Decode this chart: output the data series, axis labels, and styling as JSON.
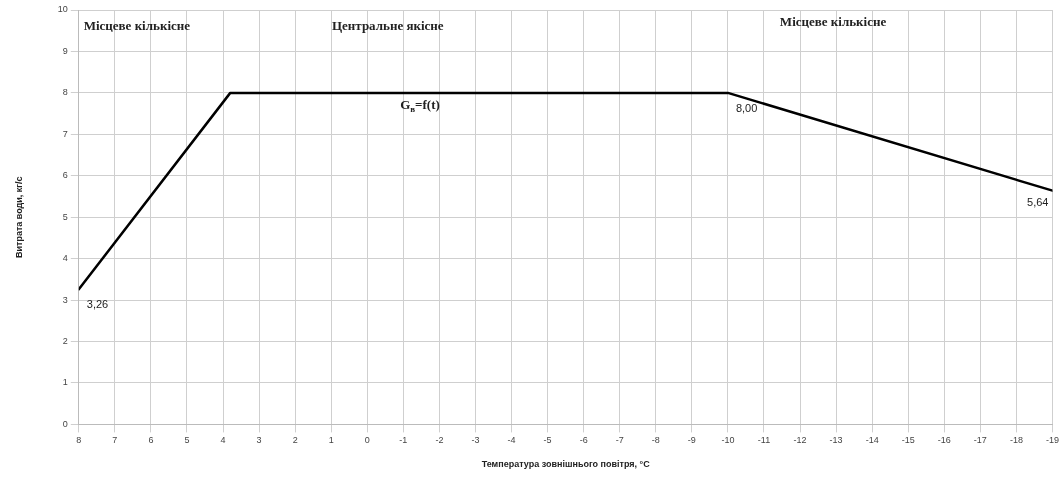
{
  "chart_data": {
    "type": "line",
    "xlabel": "Температура зовнішнього повітря, °С",
    "ylabel": "Витрата води, кг/с",
    "x": [
      8,
      3.8,
      -10,
      -19
    ],
    "series": [
      {
        "color": "#000000",
        "values": [
          3.26,
          8,
          8,
          5.64
        ],
        "value_labels": [
          "3,26",
          null,
          "8,00",
          "5,64"
        ]
      }
    ],
    "xlim": [
      8,
      -19
    ],
    "xticks": [
      8,
      7,
      6,
      5,
      4,
      3,
      2,
      1,
      0,
      -1,
      -2,
      -3,
      -4,
      -5,
      -6,
      -7,
      -8,
      -9,
      -10,
      -11,
      -12,
      -13,
      -14,
      -15,
      -16,
      -17,
      -18,
      -19
    ],
    "ylim": [
      0,
      10
    ],
    "yticks": [
      0,
      1,
      2,
      3,
      4,
      5,
      6,
      7,
      8,
      9,
      10
    ],
    "grid": true,
    "legend": false,
    "marker": "none",
    "line_style": "solid",
    "annotations": [
      "Місцеве кількісне",
      "Центральне якісне",
      "Місцеве кількісне",
      "G$_{в}$=f(t)"
    ]
  }
}
